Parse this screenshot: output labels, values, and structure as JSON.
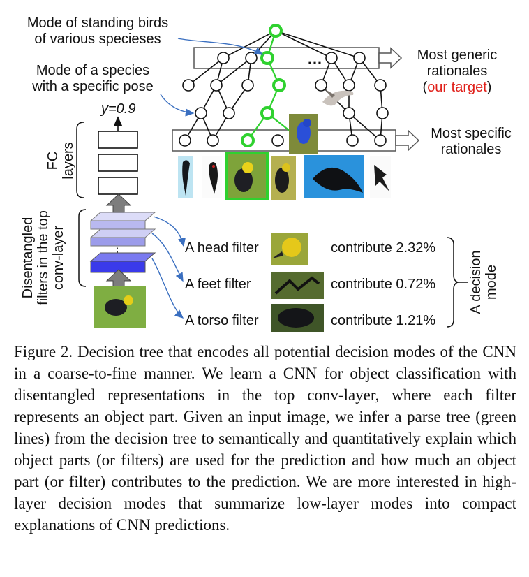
{
  "labels": {
    "mode_standing": [
      "Mode of standing birds",
      "of various specieses"
    ],
    "mode_species": [
      "Mode of a species",
      "with a specific pose"
    ],
    "most_generic": [
      "Most generic",
      "rationales"
    ],
    "our_target": "our target",
    "most_specific": [
      "Most specific",
      "rationales"
    ],
    "ellipsis": "…",
    "y_value": "y=0.9",
    "fc_layers": [
      "FC",
      "layers"
    ],
    "disentangled": [
      "Disentangled",
      "filters in the top",
      "conv-layer"
    ],
    "decision_mode": [
      "A decision",
      "mode"
    ]
  },
  "filters": [
    {
      "name": "A head filter",
      "contribution": "contribute 2.32%"
    },
    {
      "name": "A feet filter",
      "contribution": "contribute 0.72%"
    },
    {
      "name": "A torso filter",
      "contribution": "contribute 1.21%"
    }
  ],
  "caption": "Figure 2. Decision tree that encodes all potential decision modes of the CNN in a coarse-to-fine manner. We learn a CNN for object classification with disentangled representations in the top conv-layer, where each filter represents an object part. Given an input image, we infer a parse tree (green lines) from the decision tree to semantically and quantitatively explain which object parts (or filters) are used for the prediction and how much an object part (or filter) contributes to the prediction. We are more interested in high-layer decision modes that summarize low-layer modes into compact explanations of CNN predictions.",
  "colors": {
    "parse_tree": "#2fd12f",
    "arrow": "#3a6fc0",
    "highlight": "#e0201a",
    "filter_light": "#b9b9f0",
    "filter_dark": "#3a3aea"
  }
}
